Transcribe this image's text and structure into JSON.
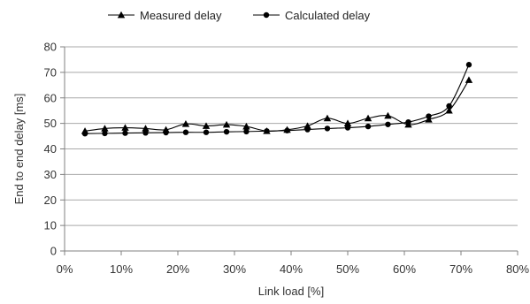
{
  "chart_data": {
    "type": "line",
    "title": "",
    "xlabel": "Link load [%]",
    "ylabel": "End to end delay [ms]",
    "xlim": [
      0,
      80
    ],
    "ylim": [
      0,
      80
    ],
    "x_ticks": [
      0,
      10,
      20,
      30,
      40,
      50,
      60,
      70,
      80
    ],
    "x_tick_labels": [
      "0%",
      "10%",
      "20%",
      "30%",
      "40%",
      "50%",
      "60%",
      "70%",
      "80%"
    ],
    "y_ticks": [
      0,
      10,
      20,
      30,
      40,
      50,
      60,
      70,
      80
    ],
    "y_tick_labels": [
      "0",
      "10",
      "20",
      "30",
      "40",
      "50",
      "60",
      "70",
      "80"
    ],
    "grid": "horizontal",
    "legend_position": "top",
    "series": [
      {
        "name": "Measured delay",
        "marker": "triangle",
        "color": "#000000",
        "points": [
          {
            "x": 3.6,
            "y": 47.0
          },
          {
            "x": 7.1,
            "y": 48.0
          },
          {
            "x": 10.7,
            "y": 48.3
          },
          {
            "x": 14.3,
            "y": 48.0
          },
          {
            "x": 17.9,
            "y": 47.5
          },
          {
            "x": 21.4,
            "y": 49.8
          },
          {
            "x": 25.0,
            "y": 49.0
          },
          {
            "x": 28.6,
            "y": 49.5
          },
          {
            "x": 32.1,
            "y": 48.8
          },
          {
            "x": 35.7,
            "y": 47.0
          },
          {
            "x": 39.3,
            "y": 47.5
          },
          {
            "x": 42.9,
            "y": 49.0
          },
          {
            "x": 46.4,
            "y": 52.0
          },
          {
            "x": 50.0,
            "y": 50.0
          },
          {
            "x": 53.6,
            "y": 52.0
          },
          {
            "x": 57.1,
            "y": 53.0
          },
          {
            "x": 60.7,
            "y": 49.5
          },
          {
            "x": 64.3,
            "y": 51.5
          },
          {
            "x": 67.9,
            "y": 55.0
          },
          {
            "x": 71.4,
            "y": 67.0
          }
        ]
      },
      {
        "name": "Calculated delay",
        "marker": "circle",
        "color": "#000000",
        "points": [
          {
            "x": 3.6,
            "y": 46.0
          },
          {
            "x": 7.1,
            "y": 46.1
          },
          {
            "x": 10.7,
            "y": 46.2
          },
          {
            "x": 14.3,
            "y": 46.3
          },
          {
            "x": 17.9,
            "y": 46.4
          },
          {
            "x": 21.4,
            "y": 46.5
          },
          {
            "x": 25.0,
            "y": 46.5
          },
          {
            "x": 28.6,
            "y": 46.7
          },
          {
            "x": 32.1,
            "y": 46.8
          },
          {
            "x": 35.7,
            "y": 47.0
          },
          {
            "x": 39.3,
            "y": 47.2
          },
          {
            "x": 42.9,
            "y": 47.6
          },
          {
            "x": 46.4,
            "y": 48.0
          },
          {
            "x": 50.0,
            "y": 48.3
          },
          {
            "x": 53.6,
            "y": 48.8
          },
          {
            "x": 57.1,
            "y": 49.6
          },
          {
            "x": 60.7,
            "y": 50.5
          },
          {
            "x": 64.3,
            "y": 52.8
          },
          {
            "x": 67.9,
            "y": 56.8
          },
          {
            "x": 71.4,
            "y": 73.0
          }
        ]
      }
    ]
  }
}
